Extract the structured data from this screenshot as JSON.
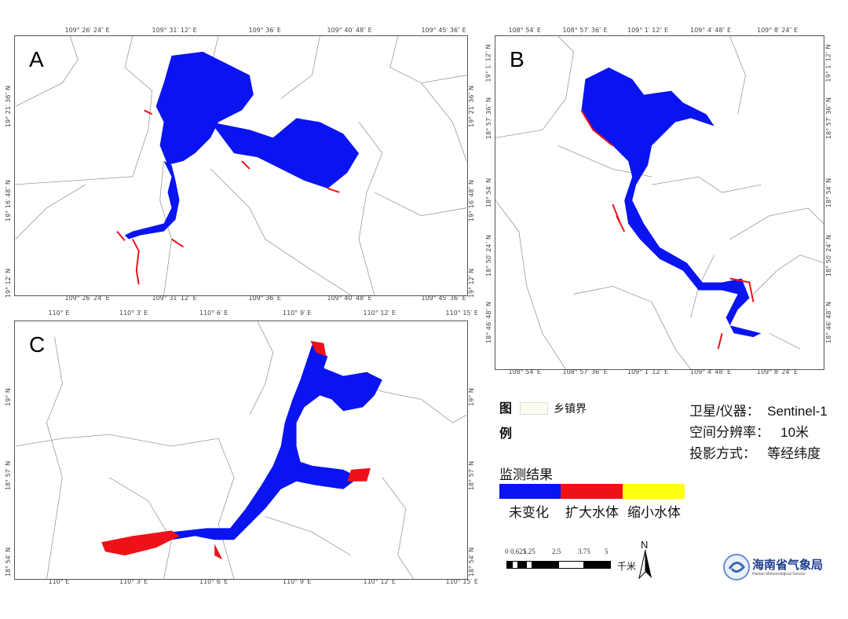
{
  "panels": [
    {
      "id": "A",
      "label": "A",
      "top_ticks": [
        "109° 26′ 24″ E",
        "109° 31′ 12″ E",
        "109° 36′ E",
        "109° 40′ 48″ E",
        "109° 45′ 36″ E"
      ],
      "side_ticks": [
        "19° 21′ 36″ N",
        "19° 16′ 48″ N",
        "19° 12′ N"
      ]
    },
    {
      "id": "B",
      "label": "B",
      "top_ticks": [
        "108° 54′ E",
        "108° 57′ 36″ E",
        "109° 1′ 12″ E",
        "109° 4′ 48″ E",
        "109° 8′ 24″ E"
      ],
      "side_ticks": [
        "19° 1′ 12″ N",
        "18° 57′ 36″ N",
        "18° 54′ N",
        "18° 50′ 24″ N",
        "18° 46′ 48″ N"
      ]
    },
    {
      "id": "C",
      "label": "C",
      "top_ticks": [
        "110° E",
        "110° 3′ E",
        "110° 6′ E",
        "110° 9′ E",
        "110° 12′ E",
        "110° 15′ E"
      ],
      "side_ticks": [
        "19° N",
        "18° 57′ N",
        "18° 54′ N"
      ]
    }
  ],
  "legend": {
    "title_1": "图",
    "title_2": "例",
    "boundary_label": "乡镇界",
    "result_title": "监测结果",
    "classes": [
      {
        "label": "未变化",
        "color": "#0a14f0"
      },
      {
        "label": "扩大水体",
        "color": "#f0101a"
      },
      {
        "label": "缩小水体",
        "color": "#ffff10"
      }
    ],
    "scale_labels": [
      "0",
      "0.625",
      "1.25",
      "2.5",
      "3.75",
      "5"
    ],
    "scale_unit": "千米",
    "north": "N"
  },
  "info": {
    "satellite": "卫星/仪器：  Sentinel-1",
    "resolution": "空间分辨率：   10米",
    "projection": "投影方式：   等经纬度"
  },
  "logo": {
    "name_cn": "海南省气象局",
    "name_en": "Hainan Meteorological Service"
  }
}
